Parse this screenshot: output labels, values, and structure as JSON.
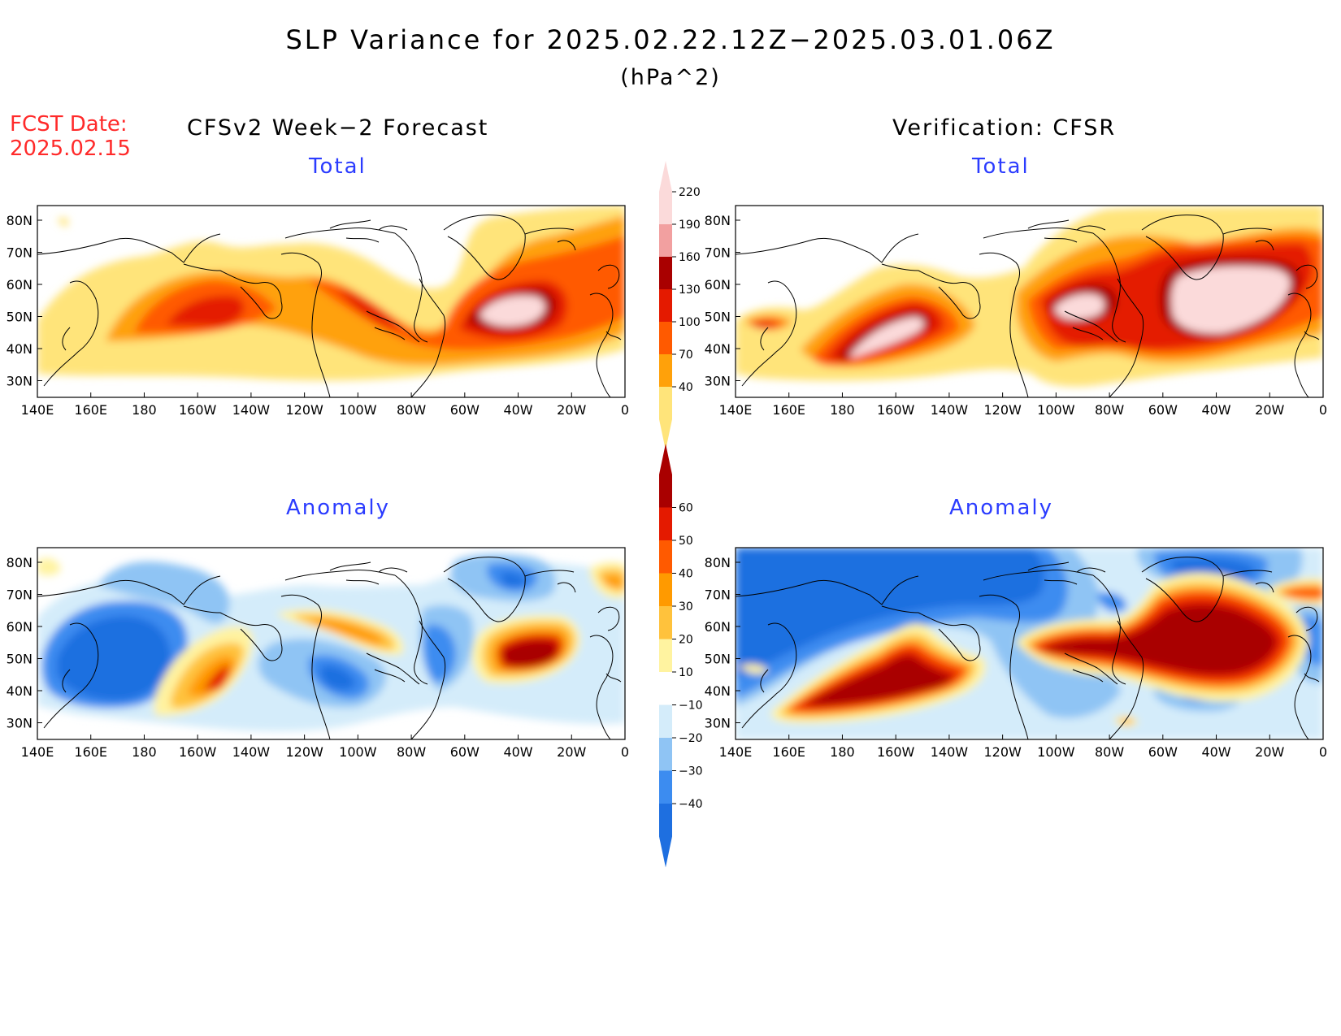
{
  "title": "SLP Variance for 2025.02.22.12Z−2025.03.01.06Z",
  "units": "(hPa^2)",
  "forecast_date": {
    "label": "FCST Date:",
    "value": "2025.02.15"
  },
  "columns": {
    "left": "CFSv2 Week−2 Forecast",
    "right": "Verification: CFSR"
  },
  "panel_titles": {
    "top": "Total",
    "bottom": "Anomaly"
  },
  "lat_labels": [
    "80N",
    "70N",
    "60N",
    "50N",
    "40N",
    "30N"
  ],
  "lon_labels": [
    "140E",
    "160E",
    "180",
    "160W",
    "140W",
    "120W",
    "100W",
    "80W",
    "60W",
    "40W",
    "20W",
    "0"
  ],
  "total_colorbar": {
    "labels": [
      "40",
      "70",
      "100",
      "130",
      "160",
      "190",
      "220"
    ],
    "colors": [
      "#ffe47a",
      "#ffa10a",
      "#ff5a00",
      "#e41a00",
      "#a90000",
      "#f2a0a0",
      "#fbdada"
    ]
  },
  "anomaly_colorbar": {
    "labels": [
      "−40",
      "−30",
      "−20",
      "−10",
      "10",
      "20",
      "30",
      "40",
      "50",
      "60"
    ],
    "colors": [
      "#1e6fe0",
      "#3c8cf0",
      "#8fc4f4",
      "#d4ecfa",
      "#ffffff",
      "#fff3a0",
      "#ffc23c",
      "#ff9a00",
      "#ff5a00",
      "#e41a00",
      "#a90000"
    ]
  }
}
